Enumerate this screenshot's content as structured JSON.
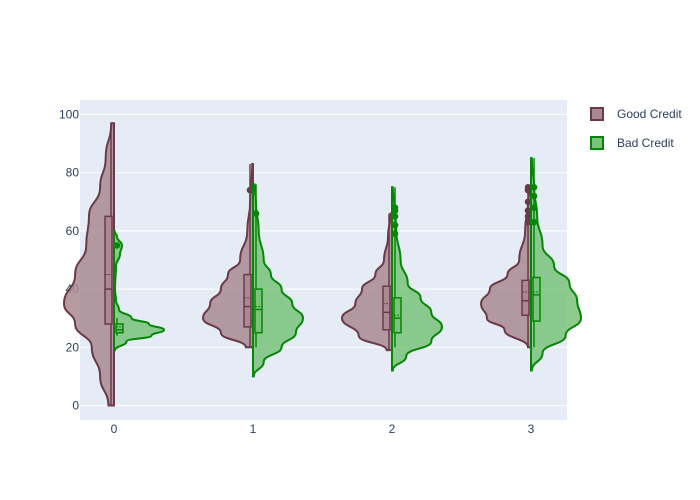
{
  "chart_data": {
    "type": "violin",
    "ylim": [
      -5,
      105
    ],
    "yticks": [
      0,
      20,
      40,
      60,
      80,
      100
    ],
    "categories": [
      "0",
      "1",
      "2",
      "3"
    ],
    "x": [
      0,
      1,
      2,
      3
    ],
    "grid": true,
    "legend_position": "top-right",
    "series": [
      {
        "name": "Good Credit",
        "side": "negative",
        "line_color": "#6b3a48",
        "fill_color": "#a98a92",
        "groups": [
          {
            "x": 0,
            "min": 0,
            "q1": 28,
            "median": 40,
            "q3": 65,
            "max": 97,
            "mean": 45,
            "density": [
              [
                0,
                0.02
              ],
              [
                10,
                0.05
              ],
              [
                20,
                0.08
              ],
              [
                28,
                0.14
              ],
              [
                35,
                0.18
              ],
              [
                45,
                0.14
              ],
              [
                55,
                0.1
              ],
              [
                65,
                0.09
              ],
              [
                75,
                0.05
              ],
              [
                85,
                0.03
              ],
              [
                97,
                0.01
              ]
            ]
          },
          {
            "x": 1,
            "min": 20,
            "q1": 27,
            "median": 34,
            "q3": 45,
            "max": 83,
            "mean": 37,
            "outliers": [
              74
            ],
            "density": [
              [
                20,
                0.1
              ],
              [
                25,
                0.45
              ],
              [
                30,
                0.7
              ],
              [
                35,
                0.6
              ],
              [
                40,
                0.45
              ],
              [
                45,
                0.35
              ],
              [
                50,
                0.18
              ],
              [
                60,
                0.08
              ],
              [
                70,
                0.04
              ],
              [
                83,
                0.01
              ]
            ]
          },
          {
            "x": 2,
            "min": 19,
            "q1": 26,
            "median": 32,
            "q3": 41,
            "max": 66,
            "mean": 35,
            "density": [
              [
                19,
                0.08
              ],
              [
                24,
                0.5
              ],
              [
                30,
                0.75
              ],
              [
                35,
                0.55
              ],
              [
                40,
                0.45
              ],
              [
                45,
                0.25
              ],
              [
                50,
                0.12
              ],
              [
                58,
                0.06
              ],
              [
                66,
                0.02
              ]
            ]
          },
          {
            "x": 3,
            "min": 20,
            "q1": 31,
            "median": 36,
            "q3": 43,
            "max": 75,
            "mean": 39,
            "outliers": [
              63,
              65,
              67,
              70,
              74,
              75
            ],
            "density": [
              [
                20,
                0.05
              ],
              [
                26,
                0.45
              ],
              [
                30,
                0.75
              ],
              [
                35,
                0.85
              ],
              [
                40,
                0.7
              ],
              [
                45,
                0.4
              ],
              [
                50,
                0.2
              ],
              [
                60,
                0.1
              ],
              [
                70,
                0.05
              ],
              [
                75,
                0.02
              ]
            ]
          }
        ]
      },
      {
        "name": "Bad Credit",
        "side": "positive",
        "line_color": "#068506",
        "fill_color": "#7ac37a",
        "groups": [
          {
            "x": 0,
            "min": 24,
            "q1": 25,
            "median": 26,
            "q3": 28,
            "max": 30,
            "mean": 27,
            "outliers": [
              55
            ],
            "density": [
              [
                19,
                0.02
              ],
              [
                22,
                0.25
              ],
              [
                24,
                0.75
              ],
              [
                26,
                1.0
              ],
              [
                28,
                0.7
              ],
              [
                30,
                0.35
              ],
              [
                33,
                0.1
              ],
              [
                36,
                0.04
              ],
              [
                40,
                0.02
              ],
              [
                48,
                0.04
              ],
              [
                52,
                0.12
              ],
              [
                55,
                0.16
              ],
              [
                58,
                0.06
              ],
              [
                60,
                0.01
              ]
            ]
          },
          {
            "x": 1,
            "min": 20,
            "q1": 25,
            "median": 33,
            "q3": 40,
            "max": 76,
            "mean": 34,
            "outliers": [
              66
            ],
            "density": [
              [
                10,
                0.01
              ],
              [
                15,
                0.15
              ],
              [
                20,
                0.4
              ],
              [
                25,
                0.6
              ],
              [
                30,
                0.7
              ],
              [
                35,
                0.55
              ],
              [
                40,
                0.4
              ],
              [
                45,
                0.25
              ],
              [
                50,
                0.15
              ],
              [
                60,
                0.08
              ],
              [
                70,
                0.04
              ],
              [
                76,
                0.02
              ]
            ]
          },
          {
            "x": 2,
            "min": 20,
            "q1": 25,
            "median": 30,
            "q3": 37,
            "max": 75,
            "mean": 31,
            "outliers": [
              59,
              62,
              65,
              67,
              68
            ],
            "density": [
              [
                12,
                0.01
              ],
              [
                17,
                0.2
              ],
              [
                22,
                0.55
              ],
              [
                27,
                0.7
              ],
              [
                32,
                0.55
              ],
              [
                37,
                0.4
              ],
              [
                42,
                0.22
              ],
              [
                50,
                0.12
              ],
              [
                60,
                0.06
              ],
              [
                70,
                0.03
              ],
              [
                75,
                0.01
              ]
            ]
          },
          {
            "x": 3,
            "min": 20,
            "q1": 29,
            "median": 38,
            "q3": 44,
            "max": 85,
            "mean": 39,
            "outliers": [
              63,
              68,
              72,
              75
            ],
            "density": [
              [
                12,
                0.01
              ],
              [
                18,
                0.15
              ],
              [
                24,
                0.45
              ],
              [
                30,
                0.65
              ],
              [
                36,
                0.6
              ],
              [
                42,
                0.5
              ],
              [
                48,
                0.3
              ],
              [
                55,
                0.15
              ],
              [
                65,
                0.08
              ],
              [
                75,
                0.04
              ],
              [
                85,
                0.01
              ]
            ]
          }
        ]
      }
    ]
  }
}
